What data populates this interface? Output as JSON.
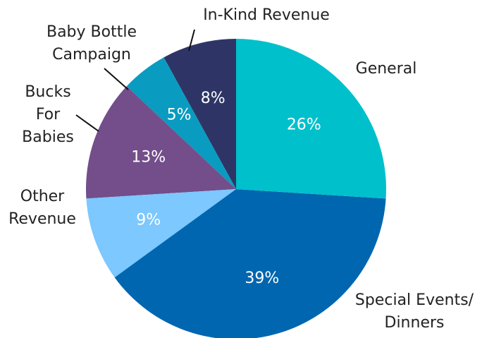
{
  "chart_data": {
    "type": "pie",
    "categories": [
      "General",
      "Special Events/ Dinners",
      "Other Revenue",
      "Bucks For Babies",
      "Baby Bottle Campaign",
      "In-Kind Revenue"
    ],
    "values": [
      26,
      39,
      9,
      13,
      5,
      8
    ],
    "colors": [
      "#00c0cc",
      "#0066b0",
      "#7cc8ff",
      "#734e8a",
      "#0a9bc0",
      "#2e3566"
    ]
  }
}
